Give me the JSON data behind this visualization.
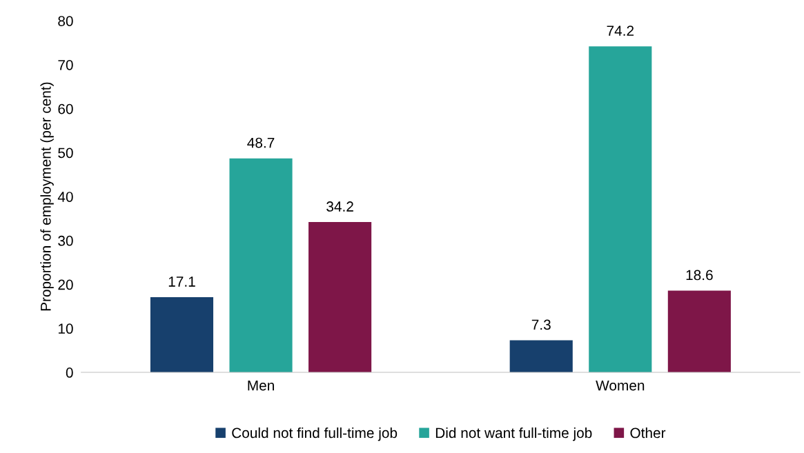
{
  "chart_data": {
    "type": "bar",
    "ylabel": "Proportion of employment (per cent)",
    "categories": [
      "Men",
      "Women"
    ],
    "series": [
      {
        "name": "Could not find full-time job",
        "color": "#17406d",
        "values": [
          17.1,
          7.3
        ]
      },
      {
        "name": "Did not want full-time job",
        "color": "#26a59a",
        "values": [
          48.7,
          74.2
        ]
      },
      {
        "name": "Other",
        "color": "#7e1648",
        "values": [
          34.2,
          18.6
        ]
      }
    ],
    "ylim": [
      0,
      80
    ],
    "yticks": [
      0,
      10,
      20,
      30,
      40,
      50,
      60,
      70,
      80
    ],
    "data_labels": true,
    "grid": false,
    "legend": "bottom"
  }
}
